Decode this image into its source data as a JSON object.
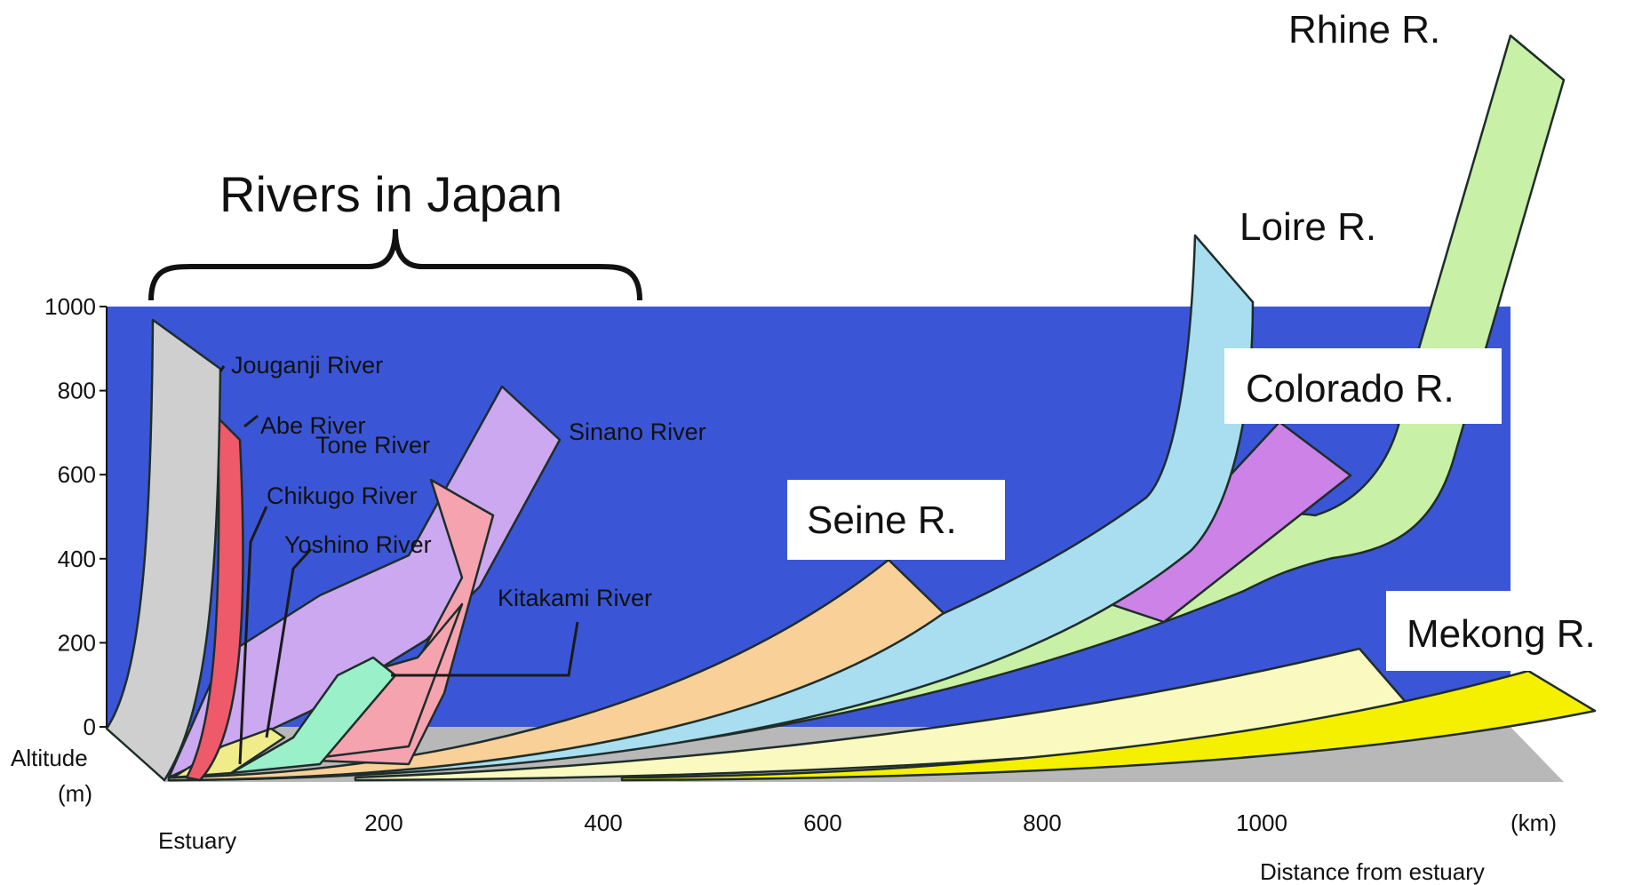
{
  "colors": {
    "background_panel": "#3a56d6",
    "label_box": "#ffffff"
  },
  "chart_data": {
    "type": "line",
    "group_title": "Rivers in Japan",
    "xlabel": "Distance from estuary",
    "x_unit": "(km)",
    "x_origin_label": "Estuary",
    "ylabel": "Altitude",
    "y_unit": "(m)",
    "xlim": [
      0,
      1150
    ],
    "ylim": [
      0,
      1000
    ],
    "x_ticks": [
      "200",
      "400",
      "600",
      "800",
      "1000"
    ],
    "y_ticks": [
      "0",
      "200",
      "400",
      "600",
      "800",
      "1000"
    ],
    "series": [
      {
        "name": "Jouganji River",
        "color": "#cfcfcf",
        "points": [
          [
            0,
            0
          ],
          [
            5,
            200
          ],
          [
            10,
            500
          ],
          [
            15,
            840
          ]
        ]
      },
      {
        "name": "Abe River",
        "color": "#ee5a6a",
        "points": [
          [
            0,
            0
          ],
          [
            30,
            100
          ],
          [
            45,
            400
          ],
          [
            55,
            720
          ]
        ]
      },
      {
        "name": "Tone River",
        "color": "#f6a3b0",
        "points": [
          [
            0,
            0
          ],
          [
            120,
            60
          ],
          [
            240,
            300
          ],
          [
            260,
            600
          ]
        ]
      },
      {
        "name": "Chikugo River",
        "color": "#f0ec8a",
        "points": [
          [
            0,
            0
          ],
          [
            60,
            40
          ],
          [
            110,
            80
          ]
        ]
      },
      {
        "name": "Yoshino River",
        "color": "#9af0c8",
        "points": [
          [
            0,
            0
          ],
          [
            120,
            40
          ],
          [
            190,
            160
          ]
        ]
      },
      {
        "name": "Sinano River",
        "color": "#cba8f0",
        "points": [
          [
            0,
            0
          ],
          [
            100,
            160
          ],
          [
            220,
            400
          ],
          [
            280,
            600
          ],
          [
            330,
            800
          ]
        ]
      },
      {
        "name": "Kitakami River",
        "color": "#f6a3b0",
        "points": [
          [
            0,
            0
          ],
          [
            150,
            100
          ],
          [
            270,
            300
          ]
        ]
      },
      {
        "name": "Seine R.",
        "color": "#f8d098",
        "points": [
          [
            0,
            0
          ],
          [
            300,
            60
          ],
          [
            550,
            200
          ],
          [
            690,
            400
          ]
        ]
      },
      {
        "name": "Loire R.",
        "color": "#a8def0",
        "points": [
          [
            0,
            0
          ],
          [
            500,
            100
          ],
          [
            850,
            400
          ],
          [
            960,
            1100
          ]
        ]
      },
      {
        "name": "Colorado R.",
        "color": "#cc82e6",
        "points": [
          [
            0,
            0
          ],
          [
            700,
            200
          ],
          [
            1050,
            600
          ]
        ]
      },
      {
        "name": "Rhine R.",
        "color": "#c8f0a6",
        "points": [
          [
            0,
            0
          ],
          [
            700,
            200
          ],
          [
            1000,
            480
          ],
          [
            1150,
            600
          ],
          [
            1200,
            1600
          ]
        ]
      },
      {
        "name": "Mekong R.",
        "color": "#fafac0",
        "points": [
          [
            0,
            0
          ],
          [
            700,
            40
          ],
          [
            1100,
            200
          ]
        ]
      },
      {
        "name": "",
        "color": "#f5f000",
        "points": [
          [
            0,
            0
          ],
          [
            800,
            20
          ],
          [
            1150,
            120
          ]
        ]
      }
    ],
    "labels": {
      "jouganji": "Jouganji River",
      "abe": "Abe River",
      "tone": "Tone River",
      "sinano": "Sinano River",
      "chikugo": "Chikugo River",
      "yoshino": "Yoshino River",
      "kitakami": "Kitakami River",
      "seine": "Seine R.",
      "loire": "Loire R.",
      "colorado": "Colorado R.",
      "rhine": "Rhine R.",
      "mekong": "Mekong R."
    }
  }
}
